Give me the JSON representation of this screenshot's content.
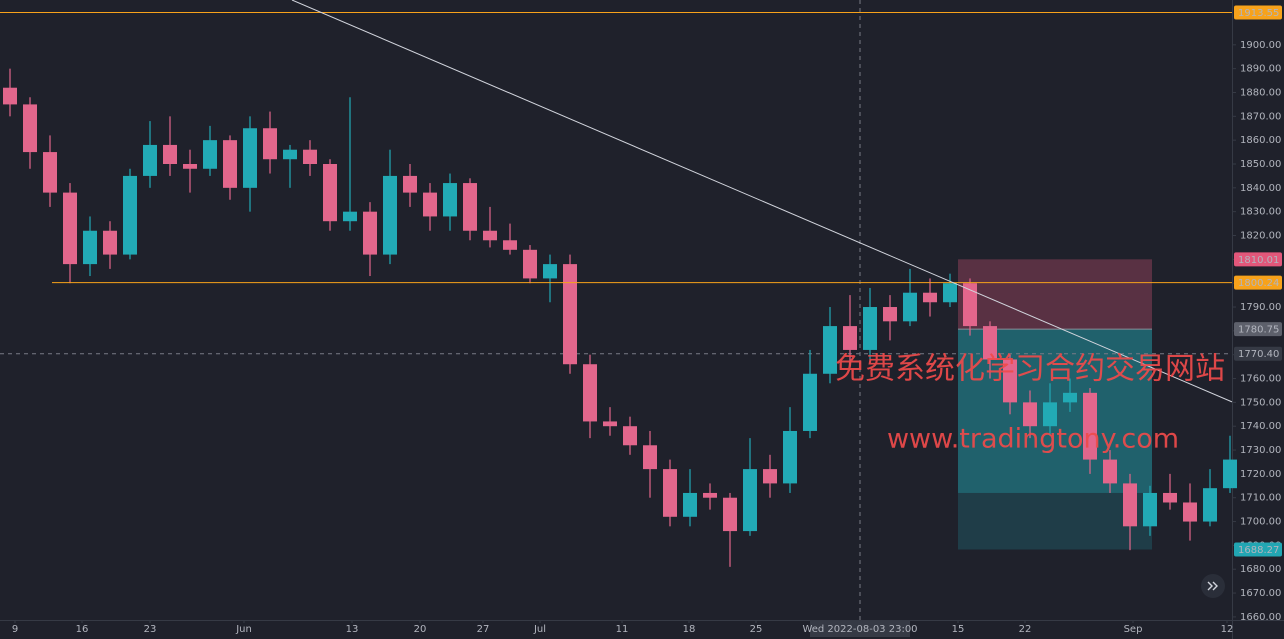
{
  "chart_data": {
    "type": "candlestick",
    "xlim": [
      0,
      61.6
    ],
    "ylim": [
      1658.7,
      1918.8
    ],
    "xticks": [
      {
        "value": 0.75,
        "label": "9"
      },
      {
        "value": 4.1,
        "label": "16"
      },
      {
        "value": 7.5,
        "label": "23"
      },
      {
        "value": 12.2,
        "label": "Jun"
      },
      {
        "value": 17.6,
        "label": "13"
      },
      {
        "value": 21,
        "label": "20"
      },
      {
        "value": 24.15,
        "label": "27"
      },
      {
        "value": 27,
        "label": "Jul"
      },
      {
        "value": 31.1,
        "label": "11"
      },
      {
        "value": 34.45,
        "label": "18"
      },
      {
        "value": 37.8,
        "label": "25"
      },
      {
        "value": 47.9,
        "label": "15"
      },
      {
        "value": 51.25,
        "label": "22"
      },
      {
        "value": 56.65,
        "label": "Sep"
      },
      {
        "value": 61.35,
        "label": "12"
      }
    ],
    "yticks": [
      {
        "value": 1660,
        "label": "1660.00"
      },
      {
        "value": 1670,
        "label": "1670.00"
      },
      {
        "value": 1680,
        "label": "1680.00"
      },
      {
        "value": 1690,
        "label": "1690.00"
      },
      {
        "value": 1700,
        "label": "1700.00"
      },
      {
        "value": 1710,
        "label": "1710.00"
      },
      {
        "value": 1720,
        "label": "1720.00"
      },
      {
        "value": 1730,
        "label": "1730.00"
      },
      {
        "value": 1740,
        "label": "1740.00"
      },
      {
        "value": 1750,
        "label": "1750.00"
      },
      {
        "value": 1760,
        "label": "1760.00"
      },
      {
        "value": 1770,
        "label": "1770.00"
      },
      {
        "value": 1780,
        "label": "1780.00"
      },
      {
        "value": 1790,
        "label": "1790.00"
      },
      {
        "value": 1800,
        "label": "1800.00"
      },
      {
        "value": 1810,
        "label": "1810.00"
      },
      {
        "value": 1820,
        "label": "1820.00"
      },
      {
        "value": 1830,
        "label": "1830.00"
      },
      {
        "value": 1840,
        "label": "1840.00"
      },
      {
        "value": 1850,
        "label": "1850.00"
      },
      {
        "value": 1860,
        "label": "1860.00"
      },
      {
        "value": 1870,
        "label": "1870.00"
      },
      {
        "value": 1880,
        "label": "1880.00"
      },
      {
        "value": 1890,
        "label": "1890.00"
      },
      {
        "value": 1900,
        "label": "1900.00"
      }
    ],
    "up_color": "#22aab5",
    "down_color": "#e2668c",
    "candles": {
      "x": [
        0.5,
        1.5,
        2.5,
        3.5,
        4.5,
        5.5,
        6.5,
        7.5,
        8.5,
        9.5,
        10.5,
        11.5,
        12.5,
        13.5,
        14.5,
        15.5,
        16.5,
        17.5,
        18.5,
        19.5,
        20.5,
        21.5,
        22.5,
        23.5,
        24.5,
        25.5,
        26.5,
        27.5,
        28.5,
        29.5,
        30.5,
        31.5,
        32.5,
        33.5,
        34.5,
        35.5,
        36.5,
        37.5,
        38.5,
        39.5,
        40.5,
        41.5,
        42.5,
        43.5,
        44.5,
        45.5,
        46.5,
        47.5,
        48.5,
        49.5,
        50.5,
        51.5,
        52.5,
        53.5,
        54.5,
        55.5,
        56.5,
        57.5,
        58.5,
        59.5,
        60.5,
        61.5
      ],
      "open": [
        1882,
        1875,
        1855,
        1838,
        1808,
        1822,
        1812,
        1845,
        1858,
        1850,
        1848,
        1860,
        1840,
        1865,
        1852,
        1856,
        1850,
        1826,
        1830,
        1812,
        1845,
        1838,
        1828,
        1842,
        1822,
        1818,
        1814,
        1802,
        1808,
        1766,
        1742,
        1740,
        1732,
        1722,
        1702,
        1712,
        1710,
        1696,
        1722,
        1716,
        1738,
        1762,
        1782,
        1772,
        1790,
        1784,
        1796,
        1792,
        1800,
        1782,
        1768,
        1750,
        1740,
        1750,
        1754,
        1726,
        1716,
        1698,
        1712,
        1708,
        1700,
        1714
      ],
      "high": [
        1890,
        1878,
        1862,
        1842,
        1828,
        1826,
        1848,
        1868,
        1870,
        1856,
        1866,
        1862,
        1870,
        1872,
        1858,
        1860,
        1852,
        1878,
        1834,
        1856,
        1850,
        1842,
        1846,
        1844,
        1832,
        1825,
        1816,
        1812,
        1812,
        1770,
        1748,
        1744,
        1738,
        1726,
        1722,
        1716,
        1712,
        1735,
        1728,
        1748,
        1772,
        1790,
        1795,
        1798,
        1795,
        1806,
        1802,
        1804,
        1802,
        1784,
        1770,
        1755,
        1758,
        1760,
        1756,
        1730,
        1720,
        1715,
        1720,
        1716,
        1722,
        1736
      ],
      "low": [
        1870,
        1848,
        1832,
        1800,
        1803,
        1806,
        1810,
        1840,
        1845,
        1838,
        1845,
        1835,
        1830,
        1846,
        1840,
        1845,
        1822,
        1822,
        1803,
        1808,
        1832,
        1822,
        1822,
        1818,
        1815,
        1812,
        1800,
        1792,
        1762,
        1735,
        1736,
        1728,
        1710,
        1698,
        1698,
        1705,
        1681,
        1694,
        1710,
        1712,
        1735,
        1758,
        1765,
        1768,
        1776,
        1782,
        1786,
        1790,
        1778,
        1760,
        1745,
        1735,
        1736,
        1746,
        1720,
        1712,
        1688,
        1694,
        1705,
        1692,
        1698,
        1712
      ],
      "close": [
        1875,
        1855,
        1838,
        1808,
        1822,
        1812,
        1845,
        1858,
        1850,
        1848,
        1860,
        1840,
        1865,
        1852,
        1856,
        1850,
        1826,
        1830,
        1812,
        1845,
        1838,
        1828,
        1842,
        1822,
        1818,
        1814,
        1802,
        1808,
        1766,
        1742,
        1740,
        1732,
        1722,
        1702,
        1712,
        1710,
        1696,
        1722,
        1716,
        1738,
        1762,
        1782,
        1772,
        1790,
        1784,
        1796,
        1792,
        1800,
        1782,
        1768,
        1750,
        1740,
        1750,
        1754,
        1726,
        1716,
        1698,
        1712,
        1708,
        1700,
        1714,
        1726
      ]
    },
    "price_lines": [
      {
        "value": 1913.55,
        "color": "#f7a21b",
        "x_start": 0
      },
      {
        "value": 1800.24,
        "color": "#f7a21b",
        "x_start": 2.6
      }
    ],
    "trend_line": {
      "points": [
        [
          14.6,
          1918.8
        ],
        [
          61.6,
          1750.2
        ]
      ],
      "color": "#d1d4dc"
    },
    "position": {
      "x": [
        47.9,
        57.6
      ],
      "stop": 1810.01,
      "entry": 1780.75,
      "target": 1688.27,
      "current": 1712,
      "stop_color": "#e2577a",
      "entry_color": "#5d606b",
      "target_color": "#22a6b3"
    },
    "crosshair": {
      "x": 43,
      "x_label": "Wed 2022-08-03  23:00",
      "y": {
        "value": 1770.4,
        "label": "1770.40"
      }
    },
    "watermark": [
      "免费系统化学习合约交易网站",
      "www.tradingtony.com"
    ]
  }
}
